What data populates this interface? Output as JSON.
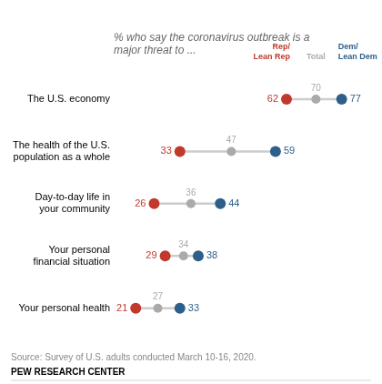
{
  "chart_data": {
    "type": "dumbbell",
    "title": "% who say the coronavirus outbreak is a\nmajor threat to ...",
    "categories": [
      "The U.S. economy",
      "The health of the U.S.\npopulation as a whole",
      "Day-to-day life in\nyour community",
      "Your personal\nfinancial situation",
      "Your personal health"
    ],
    "series": [
      {
        "name": "Rep/\nLean Rep",
        "color": "#c0392b",
        "values": [
          62,
          33,
          26,
          29,
          21
        ]
      },
      {
        "name": "Total",
        "color": "#aaaaaa",
        "values": [
          70,
          47,
          36,
          34,
          27
        ]
      },
      {
        "name": "Dem/\nLean Dem",
        "color": "#2c5f8a",
        "values": [
          77,
          59,
          44,
          38,
          33
        ]
      }
    ],
    "color": "#cccccc",
    "xlim": [
      15,
      85
    ],
    "tick_labels": false,
    "grid": false,
    "data_labels": true,
    "annotations": [
      "Source: Survey of U.S. adults conducted March 10-16, 2020.",
      "PEW RESEARCH CENTER"
    ]
  }
}
